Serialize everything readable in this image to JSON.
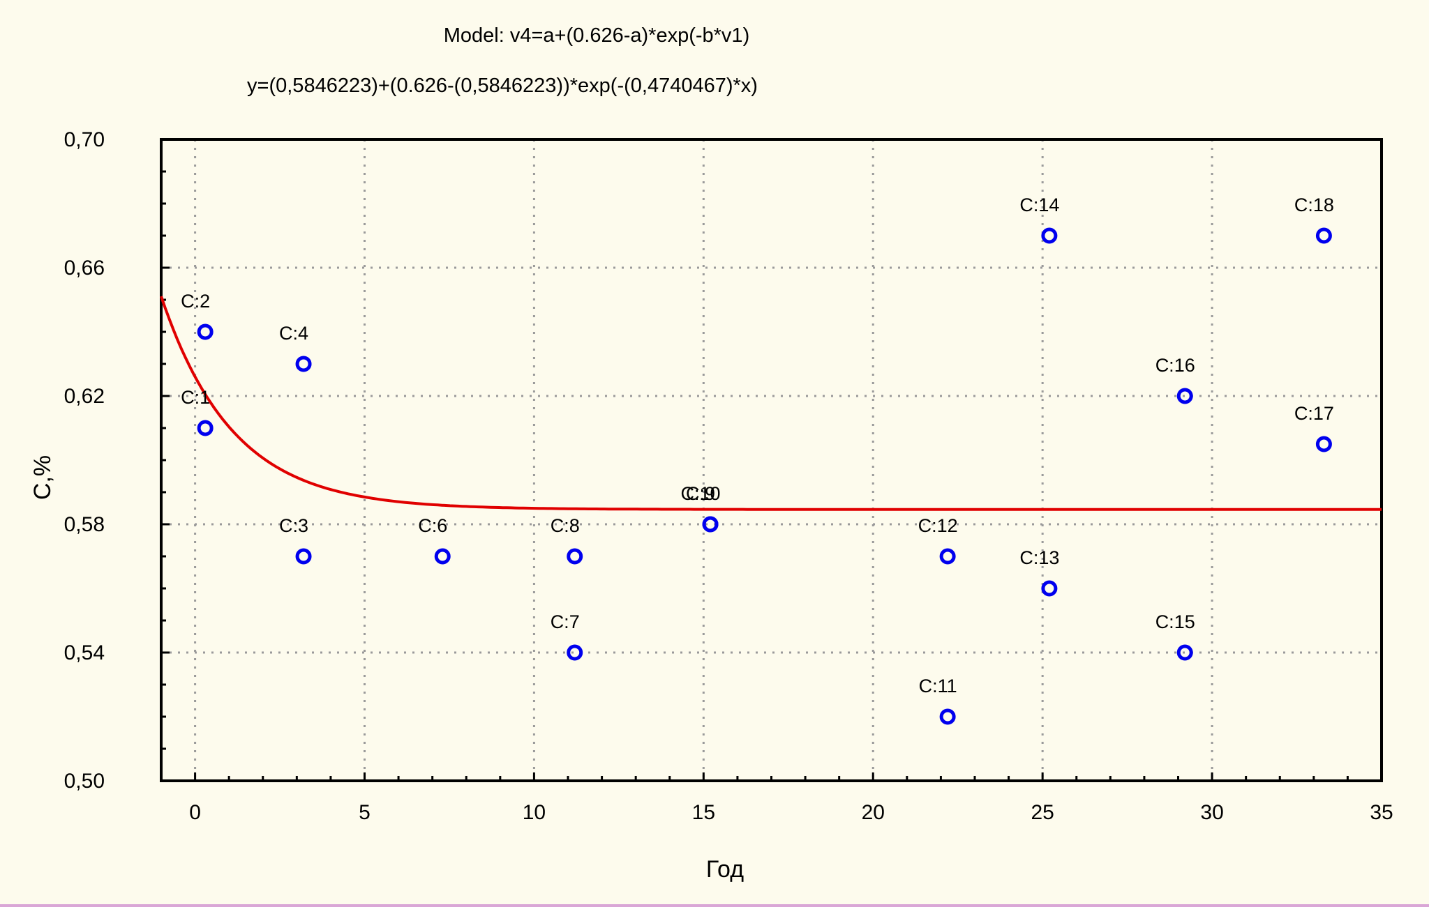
{
  "page": {
    "background": "#fdfbed",
    "bottom_border_color": "#d9a6d6"
  },
  "chart_data": {
    "type": "scatter",
    "title": "Model: v4=a+(0.626-a)*exp(-b*v1)",
    "subtitle": "y=(0,5846223)+(0.626-(0,5846223))*exp(-(0,4740467)*x)",
    "xlabel": "Год",
    "ylabel": "C,%",
    "xlim": [
      -1,
      35
    ],
    "ylim": [
      0.5,
      0.7
    ],
    "x_ticks": [
      0,
      5,
      10,
      15,
      20,
      25,
      30,
      35
    ],
    "x_tick_labels": [
      "0",
      "5",
      "10",
      "15",
      "20",
      "25",
      "30",
      "35"
    ],
    "y_ticks": [
      0.5,
      0.54,
      0.58,
      0.62,
      0.66,
      0.7
    ],
    "y_tick_labels": [
      "0,50",
      "0,54",
      "0,58",
      "0,62",
      "0,66",
      "0,70"
    ],
    "grid": true,
    "point_color": "#0000ee",
    "curve_color": "#e00000",
    "points": [
      {
        "label": "C:1",
        "x": 0.3,
        "y": 0.61
      },
      {
        "label": "C:2",
        "x": 0.3,
        "y": 0.64
      },
      {
        "label": "C:3",
        "x": 3.2,
        "y": 0.57
      },
      {
        "label": "C:4",
        "x": 3.2,
        "y": 0.63
      },
      {
        "label": "C:6",
        "x": 7.3,
        "y": 0.57
      },
      {
        "label": "C:7",
        "x": 11.2,
        "y": 0.54
      },
      {
        "label": "C:8",
        "x": 11.2,
        "y": 0.57
      },
      {
        "label": "C:9",
        "x": 15.2,
        "y": 0.58
      },
      {
        "label": "C:10",
        "x": 15.2,
        "y": 0.58
      },
      {
        "label": "C:11",
        "x": 22.2,
        "y": 0.52
      },
      {
        "label": "C:12",
        "x": 22.2,
        "y": 0.57
      },
      {
        "label": "C:13",
        "x": 25.2,
        "y": 0.56
      },
      {
        "label": "C:14",
        "x": 25.2,
        "y": 0.67
      },
      {
        "label": "C:15",
        "x": 29.2,
        "y": 0.54
      },
      {
        "label": "C:16",
        "x": 29.2,
        "y": 0.62
      },
      {
        "label": "C:17",
        "x": 33.3,
        "y": 0.605
      },
      {
        "label": "C:18",
        "x": 33.3,
        "y": 0.67
      }
    ],
    "fit": {
      "a": 0.5846223,
      "c": 0.626,
      "b": 0.4740467,
      "x_range": [
        -1,
        35
      ]
    }
  }
}
